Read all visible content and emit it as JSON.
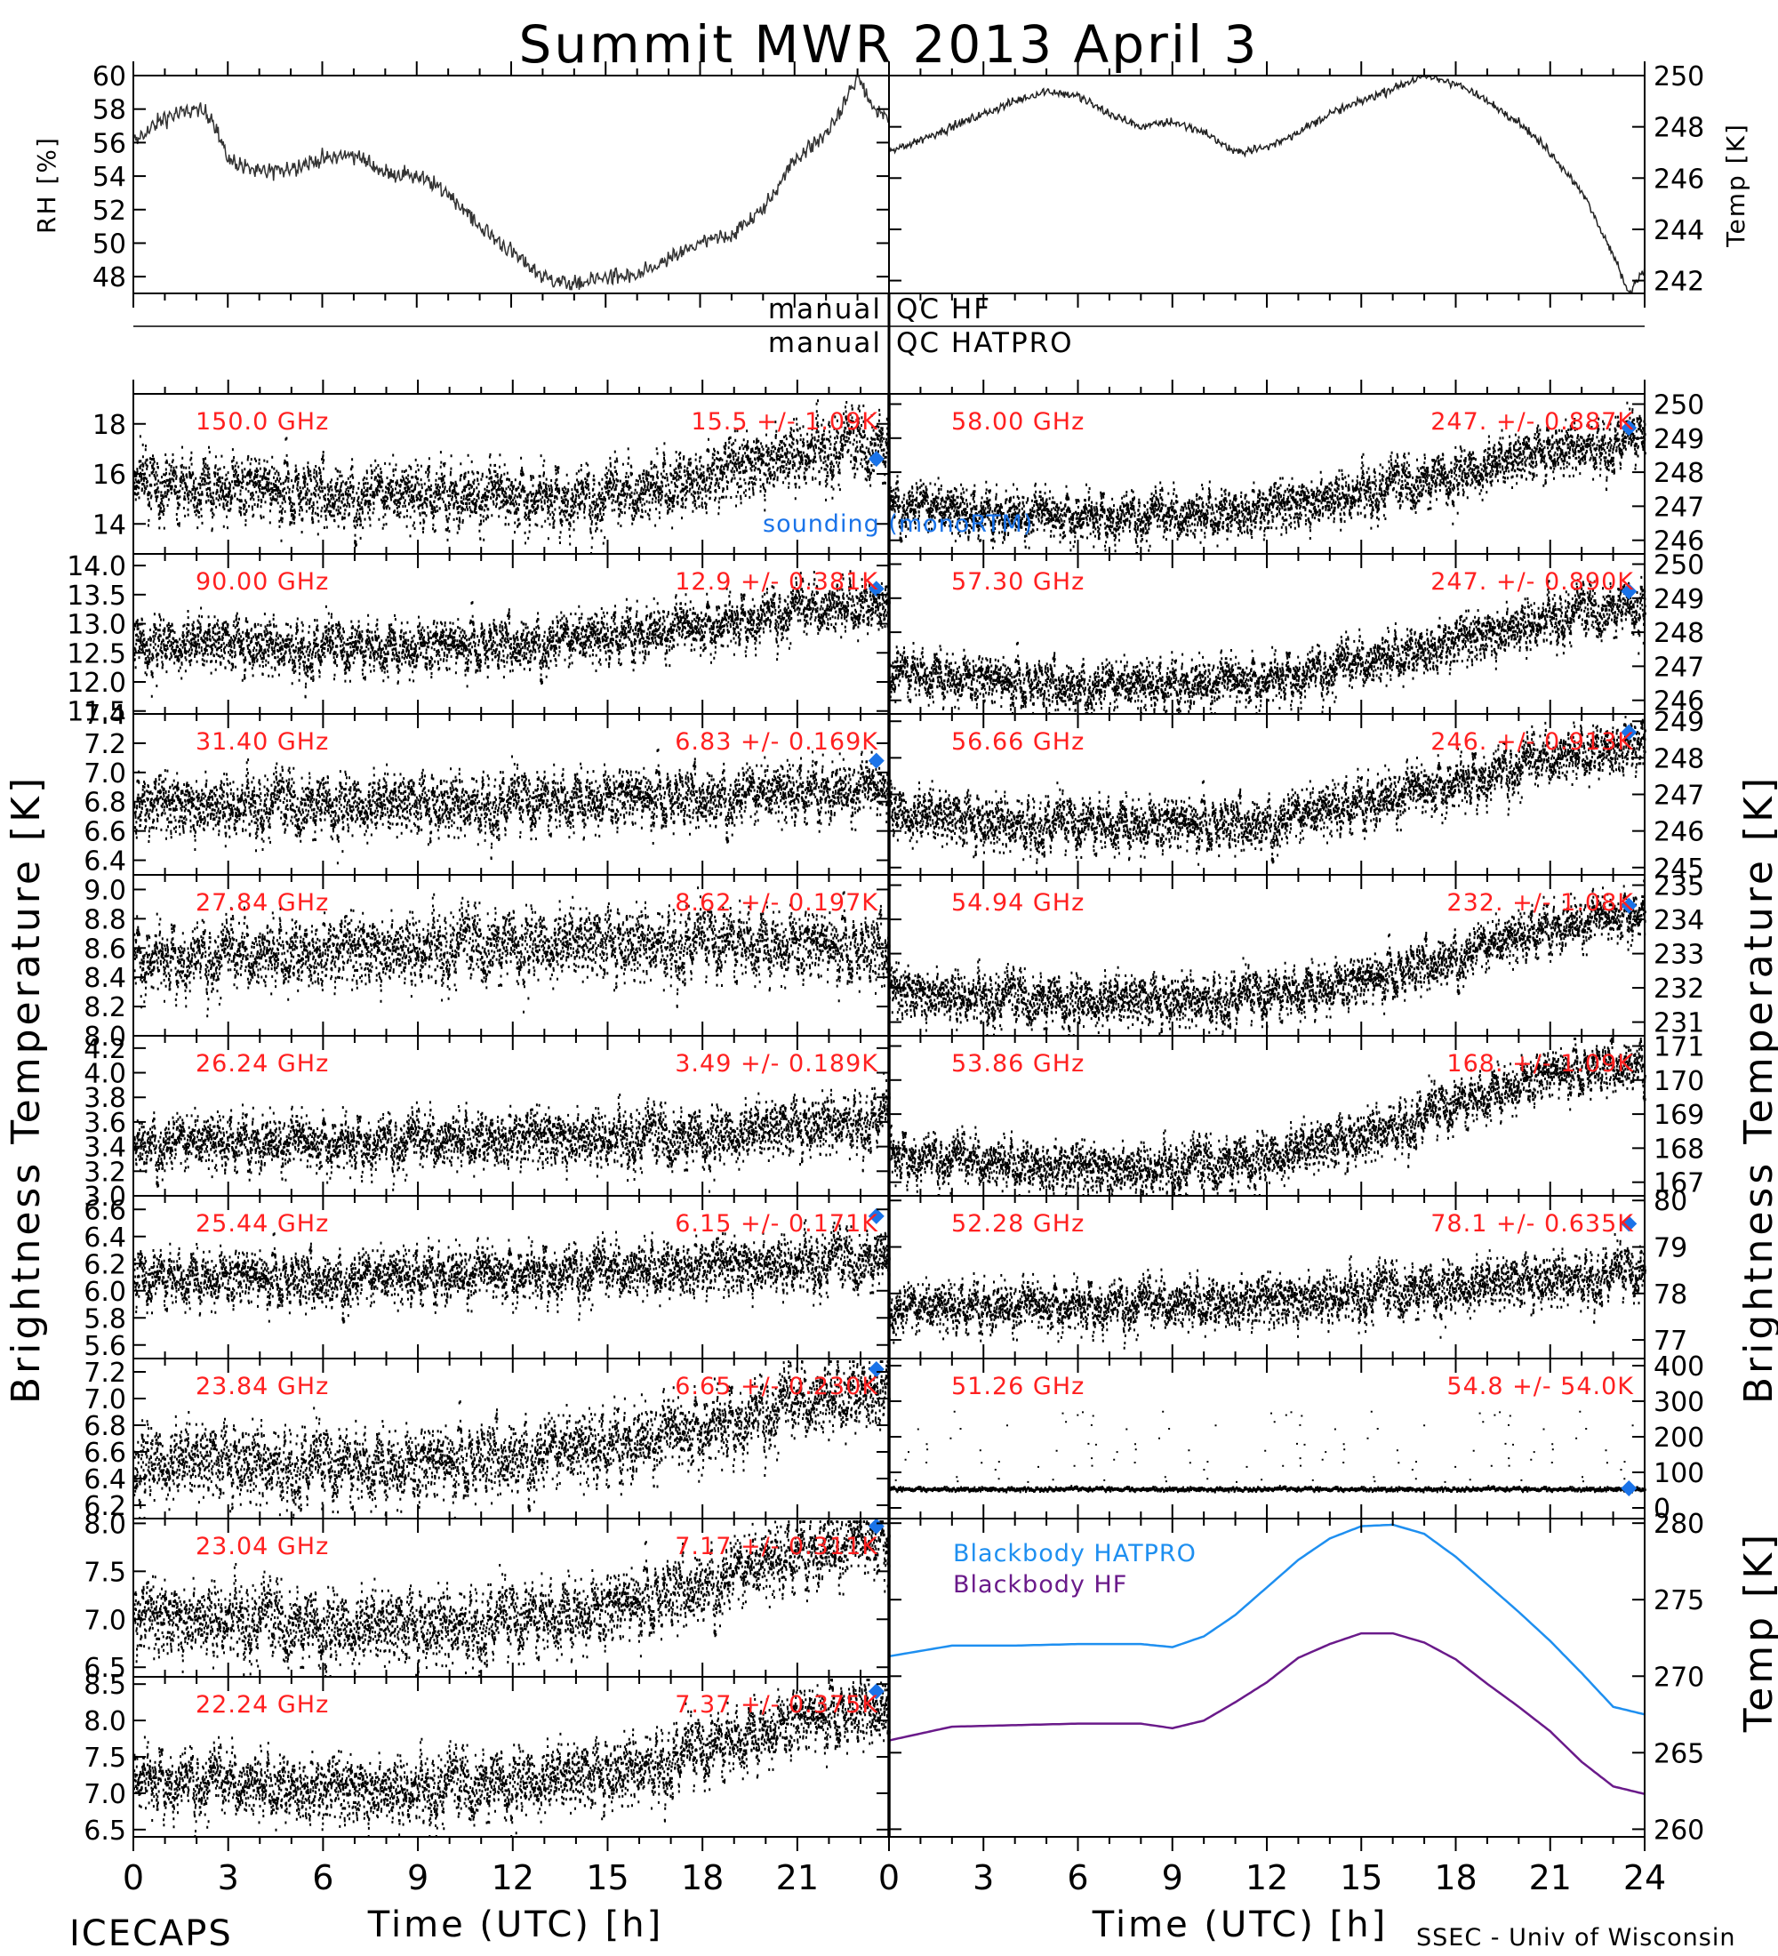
{
  "title": "Summit MWR 2013 April  3",
  "footer": {
    "left": "ICECAPS",
    "right": "SSEC - Univ of Wisconsin"
  },
  "qc": {
    "hf_label_left": "manual",
    "hf_label_right": "QC HF",
    "hatpro_label_left": "manual",
    "hatpro_label_right": "QC HATPRO"
  },
  "axes": {
    "xlabel": "Time (UTC) [h]",
    "xticks_left": [
      "0",
      "3",
      "6",
      "9",
      "12",
      "15",
      "18",
      "21"
    ],
    "xticks_right": [
      "0",
      "3",
      "6",
      "9",
      "12",
      "15",
      "18",
      "21",
      "24"
    ],
    "ylabel_left": "Brightness Temperature [K]",
    "ylabel_right": "Brightness Temperature [K]"
  },
  "colors": {
    "trace": "#000000",
    "annotation": "#ff2020",
    "sounding": "#1a73e8",
    "bb_hatpro": "#1e8ff0",
    "bb_hf": "#6a1a8a"
  },
  "sounding_label": "sounding (monoRTM)",
  "chart_data": [
    {
      "type": "line",
      "id": "rh",
      "ylabel": "RH [%]",
      "ylim": [
        47,
        60
      ],
      "yticks": [
        "48",
        "50",
        "52",
        "54",
        "56",
        "58",
        "60"
      ],
      "x": [
        0,
        1,
        2,
        2.5,
        3,
        4,
        5,
        6,
        7,
        8,
        9,
        10,
        11,
        12,
        13,
        14,
        15,
        16,
        17,
        18,
        19,
        20,
        21,
        22,
        22.5,
        23,
        23.5,
        24
      ],
      "values": [
        56,
        57.5,
        58,
        57.5,
        55,
        54.2,
        54.5,
        55,
        55.3,
        54.2,
        54,
        53,
        51,
        49.5,
        48,
        47.5,
        48,
        48,
        49,
        50,
        50.5,
        52,
        55,
        56.5,
        58,
        60,
        58,
        57.5
      ]
    },
    {
      "type": "line",
      "id": "temp",
      "ylabel": "Temp [K]",
      "ylim": [
        241.5,
        250
      ],
      "yticks": [
        "242",
        "244",
        "246",
        "248",
        "250"
      ],
      "x": [
        0,
        1,
        2,
        3,
        4,
        5,
        6,
        7,
        8,
        9,
        10,
        11,
        12,
        13,
        14,
        15,
        16,
        17,
        18,
        19,
        20,
        21,
        22,
        23,
        23.5,
        24
      ],
      "values": [
        247,
        247.5,
        248,
        248.5,
        249,
        249.4,
        249.2,
        248.5,
        248,
        248.2,
        247.8,
        247,
        247.2,
        247.8,
        248.5,
        249,
        249.5,
        250,
        249.7,
        249,
        248.2,
        247,
        245.5,
        243,
        241.5,
        242.5
      ]
    },
    {
      "type": "scatter",
      "id": "hf-150",
      "label": "150.0 GHz",
      "stat": "15.5 +/- 1.09K",
      "ylim": [
        12.8,
        19.2
      ],
      "yticks": [
        "14",
        "16",
        "18"
      ],
      "sounding": 16.6,
      "x": [
        0,
        3,
        6,
        9,
        12,
        15,
        18,
        21,
        23.5
      ],
      "values": [
        15.5,
        15.5,
        15.3,
        15.2,
        15.2,
        15.2,
        16,
        17,
        17.3
      ],
      "noise": 1.09
    },
    {
      "type": "scatter",
      "id": "hf-90",
      "label": "90.00 GHz",
      "stat": "12.9 +/- 0.381K",
      "ylim": [
        11.45,
        14.2
      ],
      "yticks": [
        "11.5",
        "12.0",
        "12.5",
        "13.0",
        "13.5",
        "14.0"
      ],
      "sounding": 13.6,
      "x": [
        0,
        3,
        6,
        9,
        12,
        15,
        18,
        21,
        23.5
      ],
      "values": [
        12.7,
        12.7,
        12.6,
        12.6,
        12.7,
        12.8,
        13.0,
        13.3,
        13.4
      ],
      "noise": 0.381
    },
    {
      "type": "scatter",
      "id": "hf-31.40",
      "label": "31.40 GHz",
      "stat": "6.83 +/- 0.169K",
      "ylim": [
        6.3,
        7.4
      ],
      "yticks": [
        "6.4",
        "6.6",
        "6.8",
        "7.0",
        "7.2",
        "7.4"
      ],
      "sounding": 7.08,
      "x": [
        0,
        6,
        12,
        18,
        23.5
      ],
      "values": [
        6.8,
        6.8,
        6.8,
        6.85,
        6.9
      ],
      "noise": 0.169
    },
    {
      "type": "scatter",
      "id": "hf-27.84",
      "label": "27.84 GHz",
      "stat": "8.62 +/- 0.197K",
      "ylim": [
        8.0,
        9.1
      ],
      "yticks": [
        "8.0",
        "8.2",
        "8.4",
        "8.6",
        "8.8",
        "9.0"
      ],
      "sounding": null,
      "x": [
        0,
        6,
        12,
        18,
        23.5
      ],
      "values": [
        8.55,
        8.6,
        8.65,
        8.65,
        8.6
      ],
      "noise": 0.197
    },
    {
      "type": "scatter",
      "id": "hf-26.24",
      "label": "26.24 GHz",
      "stat": "3.49 +/- 0.189K",
      "ylim": [
        3.0,
        4.3
      ],
      "yticks": [
        "3.0",
        "3.2",
        "3.4",
        "3.6",
        "3.8",
        "4.0",
        "4.2"
      ],
      "sounding": null,
      "x": [
        0,
        6,
        12,
        18,
        23.5
      ],
      "values": [
        3.45,
        3.45,
        3.5,
        3.5,
        3.65
      ],
      "noise": 0.189
    },
    {
      "type": "scatter",
      "id": "hf-25.44",
      "label": "25.44 GHz",
      "stat": "6.15 +/- 0.171K",
      "ylim": [
        5.5,
        6.7
      ],
      "yticks": [
        "5.6",
        "5.8",
        "6.0",
        "6.2",
        "6.4",
        "6.6"
      ],
      "sounding": 6.55,
      "x": [
        0,
        6,
        12,
        18,
        23.5
      ],
      "values": [
        6.1,
        6.1,
        6.15,
        6.2,
        6.25
      ],
      "noise": 0.171
    },
    {
      "type": "scatter",
      "id": "hf-23.84",
      "label": "23.84 GHz",
      "stat": "6.65 +/- 0.230K",
      "ylim": [
        6.1,
        7.3
      ],
      "yticks": [
        "6.2",
        "6.4",
        "6.6",
        "6.8",
        "7.0",
        "7.2"
      ],
      "sounding": 7.22,
      "x": [
        0,
        3,
        6,
        9,
        12,
        15,
        18,
        21,
        23.5
      ],
      "values": [
        6.55,
        6.55,
        6.5,
        6.5,
        6.6,
        6.65,
        6.8,
        7.0,
        7.1
      ],
      "noise": 0.23
    },
    {
      "type": "scatter",
      "id": "hf-23.04",
      "label": "23.04 GHz",
      "stat": "7.17 +/- 0.311K",
      "ylim": [
        6.4,
        8.05
      ],
      "yticks": [
        "6.5",
        "7.0",
        "7.5",
        "8.0"
      ],
      "sounding": 7.97,
      "x": [
        0,
        3,
        6,
        9,
        12,
        15,
        18,
        21,
        23.5
      ],
      "values": [
        7.05,
        7.05,
        6.95,
        6.95,
        7.0,
        7.1,
        7.4,
        7.7,
        7.85
      ],
      "noise": 0.311
    },
    {
      "type": "scatter",
      "id": "hf-22.24",
      "label": "22.24 GHz",
      "stat": "7.37 +/- 0.375K",
      "ylim": [
        6.4,
        8.6
      ],
      "yticks": [
        "6.5",
        "7.0",
        "7.5",
        "8.0",
        "8.5"
      ],
      "sounding": 8.4,
      "x": [
        0,
        3,
        6,
        9,
        12,
        15,
        18,
        21,
        23.5
      ],
      "values": [
        7.25,
        7.2,
        7.1,
        7.1,
        7.2,
        7.3,
        7.6,
        8.0,
        8.2
      ],
      "noise": 0.375
    },
    {
      "type": "scatter",
      "id": "hp-58.00",
      "label": "58.00 GHz",
      "stat": "247. +/- 0.887K",
      "ylim": [
        245.6,
        250.3
      ],
      "yticks": [
        "246",
        "247",
        "248",
        "249",
        "250"
      ],
      "sounding": 249.3,
      "x": [
        0,
        3,
        6,
        9,
        12,
        15,
        18,
        21,
        24
      ],
      "values": [
        247.2,
        246.8,
        246.8,
        246.8,
        247,
        247.5,
        248,
        248.7,
        249
      ],
      "noise": 0.6
    },
    {
      "type": "scatter",
      "id": "hp-57.30",
      "label": "57.30 GHz",
      "stat": "247. +/- 0.890K",
      "ylim": [
        245.6,
        250.3
      ],
      "yticks": [
        "246",
        "247",
        "248",
        "249",
        "250"
      ],
      "sounding": 249.2,
      "x": [
        0,
        3,
        6,
        9,
        12,
        15,
        18,
        21,
        24
      ],
      "values": [
        246.9,
        246.6,
        246.5,
        246.5,
        246.7,
        247.2,
        247.8,
        248.5,
        248.9
      ],
      "noise": 0.6
    },
    {
      "type": "scatter",
      "id": "hp-56.66",
      "label": "56.66 GHz",
      "stat": "246. +/- 0.913K",
      "ylim": [
        244.8,
        249.2
      ],
      "yticks": [
        "245",
        "246",
        "247",
        "248",
        "249"
      ],
      "sounding": 248.7,
      "x": [
        0,
        3,
        6,
        9,
        12,
        15,
        18,
        21,
        24
      ],
      "values": [
        246.6,
        246.3,
        246.2,
        246.2,
        246.3,
        246.8,
        247.4,
        248.1,
        248.5
      ],
      "noise": 0.6
    },
    {
      "type": "scatter",
      "id": "hp-54.94",
      "label": "54.94 GHz",
      "stat": "232. +/- 1.08K",
      "ylim": [
        230.6,
        235.3
      ],
      "yticks": [
        "231",
        "232",
        "233",
        "234",
        "235"
      ],
      "sounding": 234.4,
      "x": [
        0,
        3,
        6,
        9,
        12,
        15,
        18,
        21,
        24
      ],
      "values": [
        232,
        231.8,
        231.7,
        231.7,
        231.8,
        232.2,
        233,
        233.8,
        234.3
      ],
      "noise": 0.6
    },
    {
      "type": "scatter",
      "id": "hp-53.86",
      "label": "53.86 GHz",
      "stat": "168. +/- 1.09K",
      "ylim": [
        166.6,
        171.3
      ],
      "yticks": [
        "167",
        "168",
        "169",
        "170",
        "171"
      ],
      "sounding": null,
      "x": [
        0,
        3,
        6,
        9,
        12,
        15,
        18,
        21,
        24
      ],
      "values": [
        167.9,
        167.7,
        167.5,
        167.5,
        167.8,
        168.4,
        169.3,
        170.2,
        170.6
      ],
      "noise": 0.6
    },
    {
      "type": "scatter",
      "id": "hp-52.28",
      "label": "52.28 GHz",
      "stat": "78.1 +/- 0.635K",
      "ylim": [
        76.6,
        80.1
      ],
      "yticks": [
        "77",
        "78",
        "79",
        "80"
      ],
      "sounding": 79.5,
      "x": [
        0,
        6,
        12,
        18,
        24
      ],
      "values": [
        77.7,
        77.8,
        77.9,
        78.2,
        78.5
      ],
      "noise": 0.45
    },
    {
      "type": "scatter",
      "id": "hp-51.26",
      "label": "51.26 GHz",
      "stat": "54.8 +/- 54.0K",
      "ylim": [
        -30,
        420
      ],
      "yticks": [
        "0",
        "100",
        "200",
        "300",
        "400"
      ],
      "sounding": 55,
      "x": [
        0,
        24
      ],
      "values": [
        55,
        55
      ],
      "noise": 5
    },
    {
      "type": "line",
      "id": "blackbody",
      "ylabel": "Temp [K]",
      "ylim": [
        259.5,
        280.3
      ],
      "yticks": [
        "260",
        "265",
        "270",
        "275",
        "280"
      ],
      "series": [
        {
          "name": "Blackbody HATPRO",
          "x": [
            0,
            2,
            4,
            6,
            8,
            9,
            10,
            11,
            12,
            13,
            14,
            15,
            16,
            17,
            18,
            19,
            20,
            21,
            22,
            23,
            24
          ],
          "values": [
            271.3,
            272,
            272,
            272.1,
            272.1,
            271.9,
            272.6,
            274,
            275.8,
            277.6,
            279,
            279.8,
            279.9,
            279.3,
            277.8,
            276,
            274.2,
            272.3,
            270.2,
            268,
            267.5
          ]
        },
        {
          "name": "Blackbody HF",
          "x": [
            0,
            2,
            4,
            6,
            8,
            9,
            10,
            11,
            12,
            13,
            14,
            15,
            16,
            17,
            18,
            19,
            20,
            21,
            22,
            23,
            24
          ],
          "values": [
            265.8,
            266.7,
            266.8,
            266.9,
            266.9,
            266.6,
            267.1,
            268.3,
            269.6,
            271.2,
            272.1,
            272.8,
            272.8,
            272.2,
            271.1,
            269.5,
            268,
            266.4,
            264.4,
            262.8,
            262.3
          ]
        }
      ]
    }
  ]
}
